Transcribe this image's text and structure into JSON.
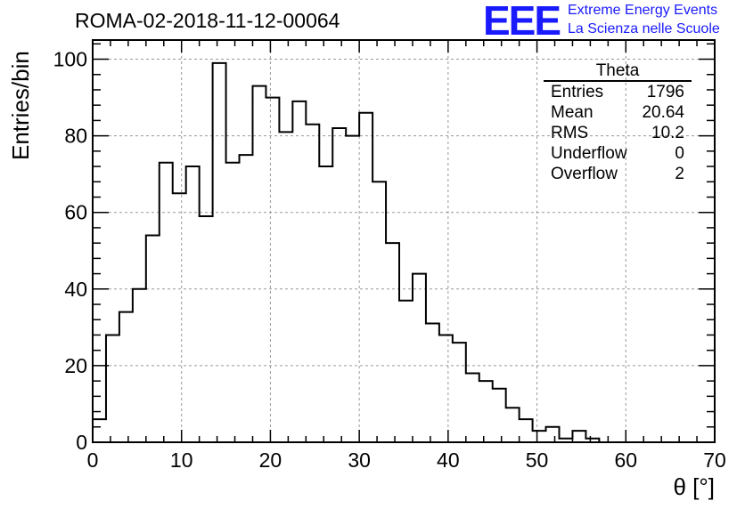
{
  "header": {
    "title": "ROMA-02-2018-11-12-00064",
    "logo_text": "EEE",
    "logo_line1": "Extreme Energy Events",
    "logo_line2": "La Scienza nelle Scuole"
  },
  "stats_box": {
    "title": "Theta",
    "rows": [
      {
        "label": "Entries",
        "value": "1796"
      },
      {
        "label": "Mean",
        "value": "20.64"
      },
      {
        "label": "RMS",
        "value": "10.2"
      },
      {
        "label": "Underflow",
        "value": "0"
      },
      {
        "label": "Overflow",
        "value": "2"
      }
    ]
  },
  "colors": {
    "histogram_line": "#000000",
    "grid": "#999999",
    "logo": "#1a1aff"
  },
  "chart_data": {
    "type": "bar",
    "style": "step-histogram",
    "xlabel": "θ [°]",
    "ylabel": "Entries/bin",
    "xlim": [
      0,
      70
    ],
    "ylim": [
      0,
      105
    ],
    "bin_width": 1.5,
    "grid": true,
    "x_ticks": [
      "0",
      "10",
      "20",
      "30",
      "40",
      "50",
      "60",
      "70"
    ],
    "y_ticks": [
      "0",
      "20",
      "40",
      "60",
      "80",
      "100"
    ],
    "bin_edges_start": 0,
    "values": [
      6,
      28,
      34,
      40,
      54,
      73,
      65,
      72,
      59,
      99,
      73,
      75,
      93,
      90,
      81,
      89,
      83,
      72,
      82,
      80,
      86,
      68,
      52,
      37,
      44,
      31,
      28,
      26,
      18,
      16,
      14,
      9,
      6,
      3,
      4,
      1,
      3,
      1,
      0
    ]
  }
}
